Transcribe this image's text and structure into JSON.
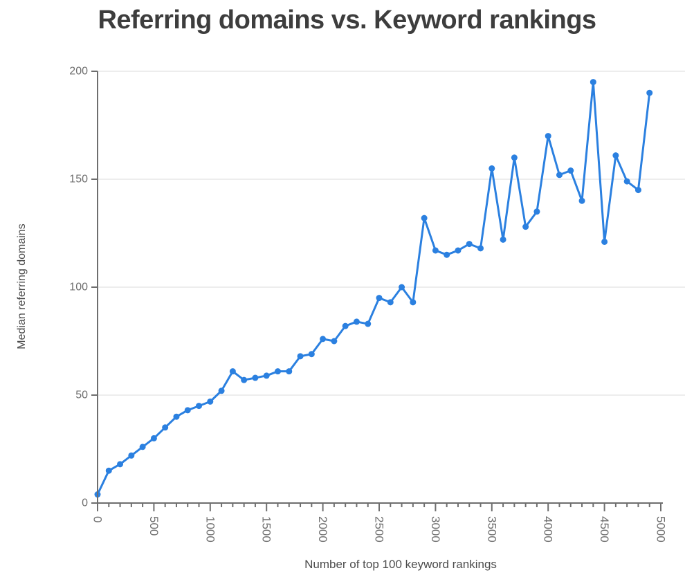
{
  "page": {
    "background_color": "#ffffff"
  },
  "chart_data": {
    "type": "line",
    "title": "Referring domains vs. Keyword rankings",
    "xlabel": "Number of top 100 keyword rankings",
    "ylabel": "Median referring domains",
    "x": [
      0,
      100,
      200,
      300,
      400,
      500,
      600,
      700,
      800,
      900,
      1000,
      1100,
      1200,
      1300,
      1400,
      1500,
      1600,
      1700,
      1800,
      1900,
      2000,
      2100,
      2200,
      2300,
      2400,
      2500,
      2600,
      2700,
      2800,
      2900,
      3000,
      3100,
      3200,
      3300,
      3400,
      3500,
      3600,
      3700,
      3800,
      3900,
      4000,
      4100,
      4200,
      4300,
      4400,
      4500,
      4600,
      4700,
      4800,
      4900
    ],
    "values": [
      4,
      15,
      18,
      22,
      26,
      30,
      35,
      40,
      43,
      45,
      47,
      52,
      61,
      57,
      58,
      59,
      61,
      61,
      68,
      69,
      76,
      75,
      82,
      84,
      83,
      95,
      93,
      100,
      93,
      132,
      117,
      115,
      117,
      120,
      118,
      155,
      122,
      160,
      128,
      135,
      170,
      152,
      154,
      140,
      195,
      121,
      161,
      149,
      145,
      190
    ],
    "xlim": [
      0,
      5000
    ],
    "ylim": [
      0,
      200
    ],
    "x_tick_values": [
      0,
      500,
      1000,
      1500,
      2000,
      2500,
      3000,
      3500,
      4000,
      4500,
      5000
    ],
    "x_tick_labels": [
      "0",
      "500",
      "1000",
      "1500",
      "2000",
      "2500",
      "3000",
      "3500",
      "4000",
      "4500",
      "5000"
    ],
    "x_minor_tick_step": 100,
    "y_tick_values": [
      0,
      50,
      100,
      150,
      200
    ],
    "y_tick_labels": [
      "0",
      "50",
      "100",
      "150",
      "200"
    ],
    "grid": "horizontal",
    "legend": "none",
    "line_color": "#2b80e0",
    "marker": "circle",
    "colors": {
      "title": "#3d3d3d",
      "axis_line": "#6e6e6e",
      "tick_label": "#6f6f6f",
      "axis_title": "#4c4c4c",
      "grid_line": "#e7e7e7"
    }
  }
}
